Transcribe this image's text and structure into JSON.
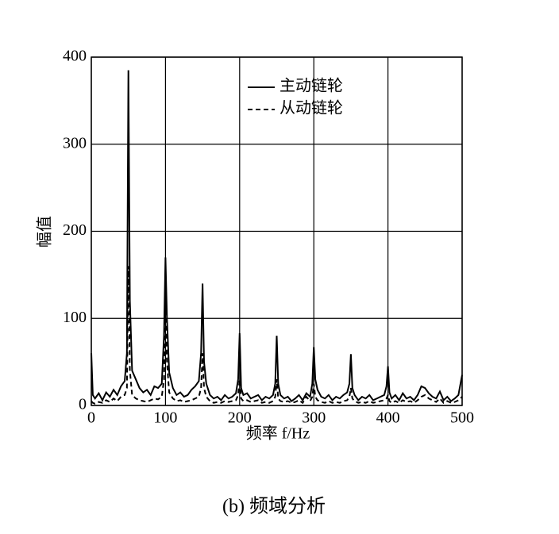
{
  "chart_data": {
    "type": "line",
    "caption": "(b) 频域分析",
    "x_label": "频率 f/Hz",
    "y_label": "幅值",
    "xlim": [
      0,
      500
    ],
    "xticks": [
      0,
      100,
      200,
      300,
      400,
      500
    ],
    "ylim": [
      0,
      400
    ],
    "yticks": [
      0,
      100,
      200,
      300,
      400
    ],
    "grid": true,
    "legend": "upper right",
    "x": [
      0,
      2,
      5,
      10,
      15,
      20,
      25,
      30,
      35,
      40,
      45,
      48,
      50,
      52,
      55,
      60,
      65,
      70,
      75,
      80,
      85,
      90,
      95,
      98,
      100,
      102,
      105,
      110,
      115,
      120,
      125,
      130,
      135,
      140,
      145,
      148,
      150,
      152,
      155,
      160,
      165,
      170,
      175,
      180,
      185,
      190,
      195,
      198,
      200,
      202,
      205,
      210,
      215,
      220,
      225,
      230,
      235,
      240,
      245,
      248,
      250,
      252,
      255,
      260,
      265,
      270,
      275,
      280,
      285,
      290,
      295,
      298,
      300,
      302,
      305,
      310,
      315,
      320,
      325,
      330,
      335,
      340,
      345,
      348,
      350,
      352,
      355,
      360,
      365,
      370,
      375,
      380,
      385,
      390,
      395,
      398,
      400,
      402,
      405,
      410,
      415,
      420,
      425,
      430,
      435,
      440,
      445,
      450,
      455,
      460,
      465,
      470,
      475,
      480,
      485,
      490,
      495,
      500
    ],
    "series": [
      {
        "name": "主动链轮",
        "color": "#000000",
        "dash": "solid",
        "values": [
          60,
          12,
          8,
          14,
          6,
          15,
          10,
          18,
          12,
          22,
          28,
          60,
          385,
          120,
          40,
          30,
          20,
          15,
          18,
          12,
          22,
          20,
          25,
          80,
          170,
          100,
          38,
          20,
          12,
          15,
          10,
          12,
          18,
          22,
          28,
          60,
          140,
          50,
          25,
          12,
          8,
          10,
          6,
          12,
          8,
          10,
          14,
          30,
          83,
          20,
          12,
          14,
          8,
          10,
          12,
          6,
          10,
          8,
          12,
          25,
          80,
          25,
          12,
          8,
          10,
          5,
          8,
          12,
          6,
          14,
          10,
          25,
          67,
          30,
          18,
          10,
          8,
          12,
          6,
          10,
          8,
          12,
          15,
          25,
          59,
          20,
          12,
          6,
          10,
          8,
          12,
          6,
          8,
          10,
          12,
          22,
          45,
          15,
          8,
          12,
          6,
          14,
          8,
          10,
          6,
          12,
          22,
          20,
          14,
          10,
          8,
          16,
          6,
          10,
          5,
          8,
          12,
          35
        ]
      },
      {
        "name": "从动链轮",
        "color": "#000000",
        "dash": "dashed",
        "values": [
          5,
          3,
          2,
          4,
          3,
          6,
          4,
          8,
          5,
          10,
          12,
          20,
          160,
          40,
          12,
          8,
          6,
          5,
          4,
          6,
          8,
          7,
          10,
          30,
          115,
          50,
          15,
          8,
          5,
          6,
          4,
          5,
          6,
          8,
          10,
          20,
          60,
          20,
          10,
          5,
          3,
          4,
          3,
          5,
          4,
          5,
          6,
          12,
          30,
          8,
          5,
          6,
          4,
          5,
          6,
          3,
          4,
          3,
          5,
          10,
          30,
          8,
          5,
          4,
          5,
          3,
          4,
          6,
          3,
          10,
          5,
          10,
          25,
          10,
          6,
          4,
          3,
          5,
          3,
          4,
          3,
          5,
          6,
          10,
          20,
          8,
          5,
          3,
          4,
          3,
          5,
          3,
          4,
          5,
          6,
          8,
          12,
          5,
          3,
          5,
          3,
          6,
          4,
          5,
          3,
          6,
          10,
          12,
          8,
          6,
          4,
          8,
          3,
          5,
          3,
          4,
          6,
          10
        ]
      }
    ]
  }
}
